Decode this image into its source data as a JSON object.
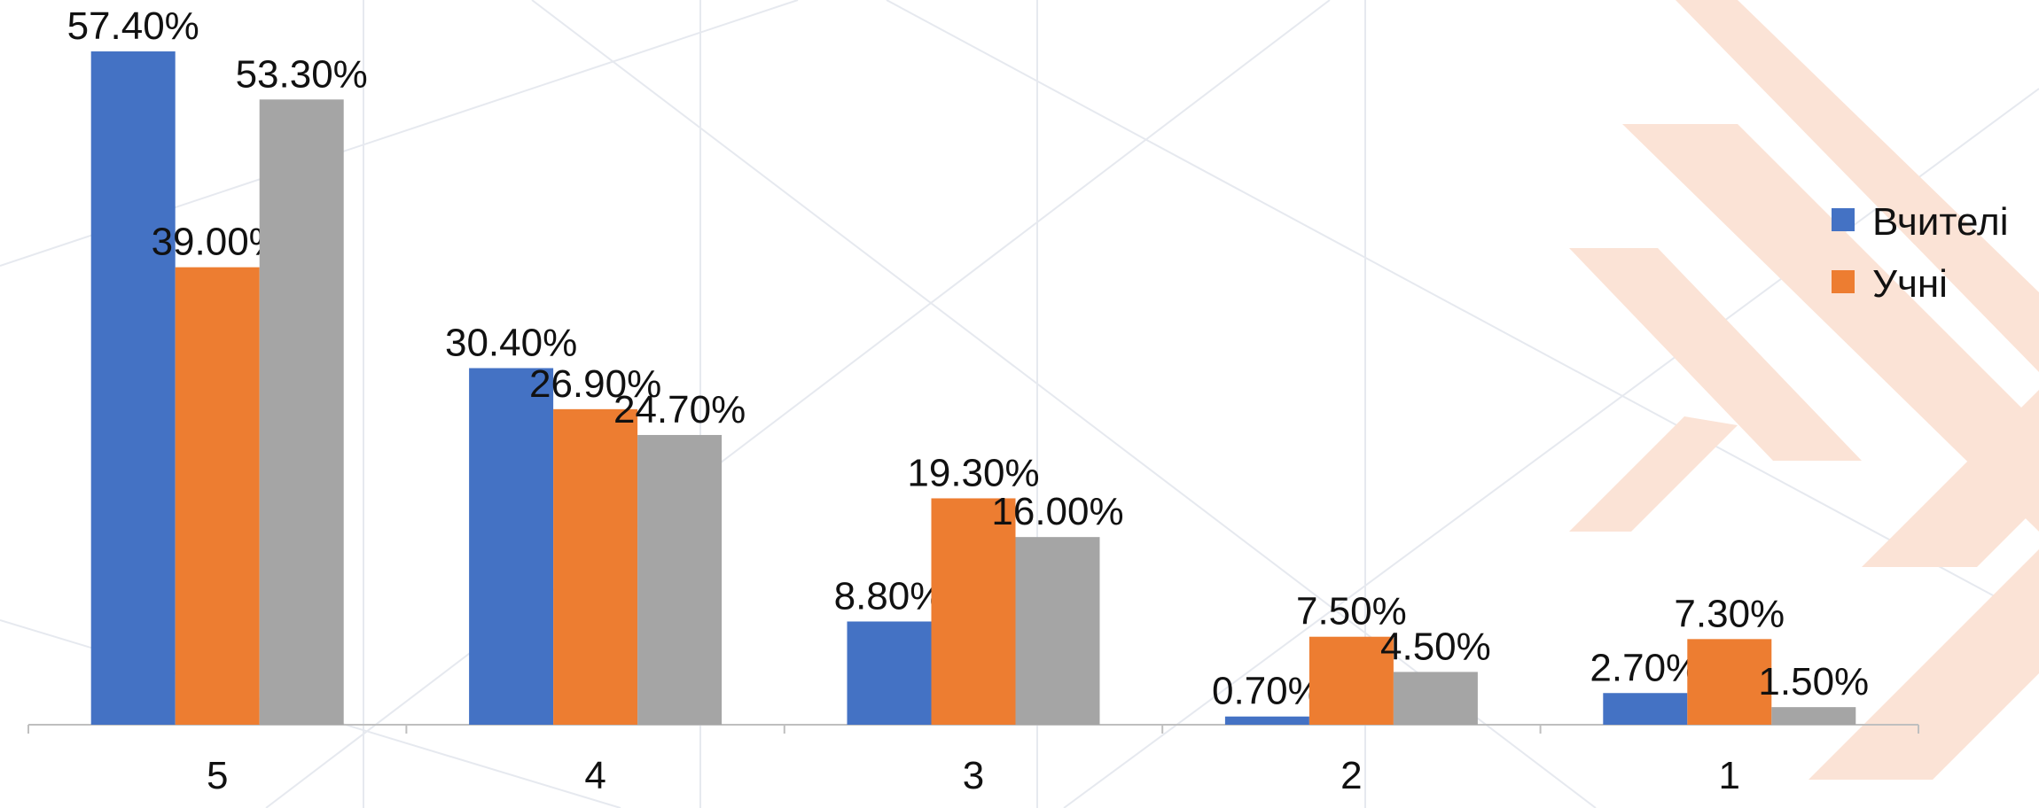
{
  "chart_data": {
    "type": "bar",
    "categories": [
      "5",
      "4",
      "3",
      "2",
      "1"
    ],
    "series": [
      {
        "name": "Вчителі",
        "color": "#4472c4",
        "values": [
          57.4,
          30.4,
          8.8,
          0.7,
          2.7
        ],
        "value_labels": [
          "57.40%",
          "30.40%",
          "8.80%",
          "0.70%",
          "2.70%"
        ]
      },
      {
        "name": "Учні",
        "color": "#ed7d31",
        "values": [
          39.0,
          26.9,
          19.3,
          7.5,
          7.3
        ],
        "value_labels": [
          "39.00%",
          "26.90%",
          "19.30%",
          "7.50%",
          "7.30%"
        ]
      },
      {
        "color": "#a5a5a5",
        "values": [
          53.3,
          24.7,
          16.0,
          4.5,
          1.5
        ],
        "value_labels": [
          "53.30%",
          "24.70%",
          "16.00%",
          "4.50%",
          "1.50%"
        ]
      }
    ],
    "legend": "right"
  }
}
